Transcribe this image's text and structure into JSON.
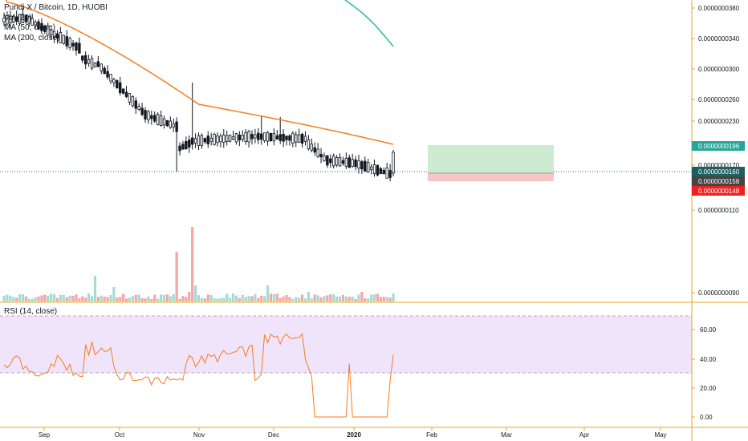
{
  "legend": {
    "title": "Pundi X / Bitcoin, 1D, HUOBI",
    "vol": "Vol (20)",
    "ma50": "MA (50, close)",
    "ma200": "MA (200, close)",
    "rsi": "RSI (14, close)"
  },
  "colors": {
    "up": "#26a69a",
    "down": "#ef5350",
    "candle": "#131722",
    "ma50": "#f57c20",
    "ma200": "#26b8a0",
    "rsi_line": "#f57c20",
    "rsi_band": "#f0e4fb",
    "grid_dotted": "#1e6f70",
    "axis": "#e6a817",
    "target_zone": "#cdebd0",
    "stop_zone": "#f7c5c5"
  },
  "chart_data": [
    {
      "type": "candlestick",
      "x_labels": [
        "Sep",
        "Oct",
        "Nov",
        "Dec",
        "2020",
        "Feb",
        "Mar",
        "Apr",
        "May"
      ],
      "y_ticks": [
        "0.0000000380",
        "0.0000000340",
        "0.0000000300",
        "0.0000000260",
        "0.0000000230",
        "0.0000000170",
        "0.0000000110",
        "0.0000000090"
      ],
      "price_labels": [
        {
          "value": "0.0000000196",
          "color": "#26a69a",
          "kind": "target"
        },
        {
          "value": "0.0000000160",
          "color": "#1e5f5f",
          "kind": "last"
        },
        {
          "value": "0.0000000158",
          "color": "#444444",
          "kind": "entry"
        },
        {
          "value": "0.0000000148",
          "color": "#ef2020",
          "kind": "stop"
        }
      ],
      "series": [
        {
          "name": "MA (50, close)",
          "kind": "line"
        },
        {
          "name": "MA (200, close)",
          "kind": "line"
        },
        {
          "name": "Vol (20)",
          "kind": "volume"
        }
      ]
    },
    {
      "type": "line",
      "title": "RSI (14, close)",
      "y_ticks": [
        "60.00",
        "40.00",
        "20.00",
        "0.00"
      ],
      "ylim": [
        -5,
        75
      ],
      "band": [
        30,
        70
      ]
    }
  ]
}
